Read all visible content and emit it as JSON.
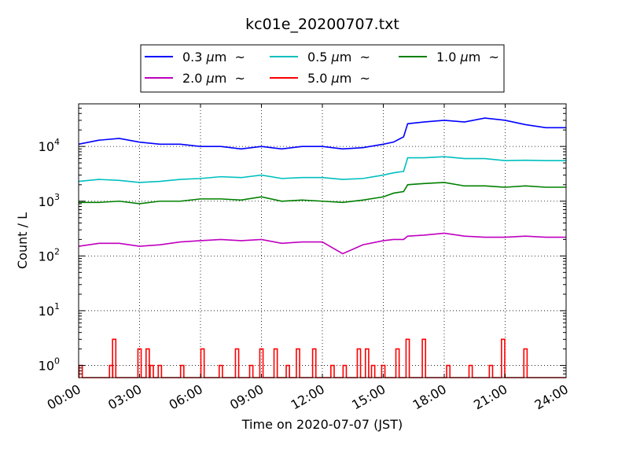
{
  "chart_data": {
    "type": "line",
    "title": "kc01e_20200707.txt",
    "xlabel": "Time on 2020-07-07 (JST)",
    "ylabel": "Count / L",
    "xscale": "linear",
    "yscale": "log",
    "xlim_hours": [
      0,
      24
    ],
    "ylim": [
      0.6,
      60000
    ],
    "grid": true,
    "legend_position": "top-center",
    "legend_columns": 3,
    "x_ticks": [
      {
        "hour": 0,
        "label": "00:00"
      },
      {
        "hour": 3,
        "label": "03:00"
      },
      {
        "hour": 6,
        "label": "06:00"
      },
      {
        "hour": 9,
        "label": "09:00"
      },
      {
        "hour": 12,
        "label": "12:00"
      },
      {
        "hour": 15,
        "label": "15:00"
      },
      {
        "hour": 18,
        "label": "18:00"
      },
      {
        "hour": 21,
        "label": "21:00"
      },
      {
        "hour": 24,
        "label": "24:00"
      }
    ],
    "y_ticks": [
      {
        "value": 1,
        "base": "10",
        "exp": "0"
      },
      {
        "value": 10,
        "base": "10",
        "exp": "1"
      },
      {
        "value": 100,
        "base": "10",
        "exp": "2"
      },
      {
        "value": 1000,
        "base": "10",
        "exp": "3"
      },
      {
        "value": 10000,
        "base": "10",
        "exp": "4"
      }
    ],
    "series": [
      {
        "name": "0.3 μm ~",
        "size": "0.3",
        "mu": "μ",
        "unit": "m",
        "tilde": "~",
        "color": "#0000ff",
        "hours": [
          0,
          1,
          2,
          3,
          4,
          5,
          6,
          7,
          8,
          9,
          10,
          11,
          12,
          13,
          14,
          15,
          15.5,
          16,
          16.2,
          17,
          18,
          19,
          20,
          21,
          22,
          23,
          24
        ],
        "values": [
          11000,
          13000,
          14000,
          12000,
          11000,
          11000,
          10000,
          10000,
          9000,
          10000,
          9000,
          10000,
          10000,
          9000,
          9500,
          11000,
          12000,
          15000,
          26000,
          28000,
          30000,
          28000,
          33000,
          30000,
          25000,
          22000,
          22000
        ]
      },
      {
        "name": "0.5 μm ~",
        "size": "0.5",
        "mu": "μ",
        "unit": "m",
        "tilde": "~",
        "color": "#00bfbf",
        "hours": [
          0,
          1,
          2,
          3,
          4,
          5,
          6,
          7,
          8,
          9,
          10,
          11,
          12,
          13,
          14,
          15,
          15.5,
          16,
          16.2,
          17,
          18,
          19,
          20,
          21,
          22,
          23,
          24
        ],
        "values": [
          2300,
          2500,
          2400,
          2200,
          2300,
          2500,
          2600,
          2800,
          2700,
          3000,
          2600,
          2700,
          2700,
          2500,
          2600,
          3000,
          3300,
          3500,
          6200,
          6200,
          6500,
          6000,
          6000,
          5500,
          5600,
          5500,
          5500
        ]
      },
      {
        "name": "1.0 μm ~",
        "size": "1.0",
        "mu": "μ",
        "unit": "m",
        "tilde": "~",
        "color": "#008000",
        "hours": [
          0,
          1,
          2,
          3,
          4,
          5,
          6,
          7,
          8,
          9,
          10,
          11,
          12,
          13,
          14,
          15,
          15.5,
          16,
          16.2,
          17,
          18,
          19,
          20,
          21,
          22,
          23,
          24
        ],
        "values": [
          950,
          950,
          1000,
          900,
          1000,
          1000,
          1100,
          1100,
          1050,
          1200,
          1000,
          1050,
          1000,
          950,
          1050,
          1200,
          1400,
          1500,
          2000,
          2100,
          2200,
          1900,
          1900,
          1800,
          1900,
          1800,
          1800
        ]
      },
      {
        "name": "2.0 μm ~",
        "size": "2.0",
        "mu": "μ",
        "unit": "m",
        "tilde": "~",
        "color": "#bf00bf",
        "hours": [
          0,
          1,
          2,
          3,
          4,
          5,
          6,
          7,
          8,
          9,
          10,
          11,
          12,
          13,
          14,
          15,
          15.5,
          16,
          16.2,
          17,
          18,
          19,
          20,
          21,
          22,
          23,
          24
        ],
        "values": [
          150,
          170,
          170,
          150,
          160,
          180,
          190,
          200,
          190,
          200,
          170,
          180,
          180,
          110,
          160,
          190,
          200,
          200,
          230,
          240,
          260,
          230,
          220,
          220,
          230,
          220,
          220
        ]
      },
      {
        "name": "5.0 μm ~",
        "size": "5.0",
        "mu": "μ",
        "unit": "m",
        "tilde": "~",
        "color": "#ff0000",
        "style": "spikes",
        "baseline": 0.6,
        "events": [
          {
            "hour": 0.1,
            "value": 1
          },
          {
            "hour": 1.6,
            "value": 1
          },
          {
            "hour": 1.75,
            "value": 3
          },
          {
            "hour": 3.0,
            "value": 2
          },
          {
            "hour": 3.4,
            "value": 2
          },
          {
            "hour": 3.6,
            "value": 1
          },
          {
            "hour": 4.0,
            "value": 1
          },
          {
            "hour": 5.1,
            "value": 1
          },
          {
            "hour": 6.1,
            "value": 2
          },
          {
            "hour": 7.0,
            "value": 1
          },
          {
            "hour": 7.8,
            "value": 2
          },
          {
            "hour": 8.5,
            "value": 1
          },
          {
            "hour": 9.0,
            "value": 2
          },
          {
            "hour": 9.7,
            "value": 2
          },
          {
            "hour": 10.3,
            "value": 1
          },
          {
            "hour": 10.8,
            "value": 2
          },
          {
            "hour": 11.6,
            "value": 2
          },
          {
            "hour": 12.5,
            "value": 1
          },
          {
            "hour": 13.1,
            "value": 1
          },
          {
            "hour": 13.8,
            "value": 2
          },
          {
            "hour": 14.2,
            "value": 2
          },
          {
            "hour": 14.5,
            "value": 1
          },
          {
            "hour": 15.0,
            "value": 1
          },
          {
            "hour": 15.7,
            "value": 2
          },
          {
            "hour": 16.2,
            "value": 3
          },
          {
            "hour": 17.0,
            "value": 3
          },
          {
            "hour": 18.2,
            "value": 1
          },
          {
            "hour": 19.3,
            "value": 1
          },
          {
            "hour": 20.3,
            "value": 1
          },
          {
            "hour": 20.9,
            "value": 3
          },
          {
            "hour": 22.0,
            "value": 2
          }
        ]
      }
    ]
  }
}
